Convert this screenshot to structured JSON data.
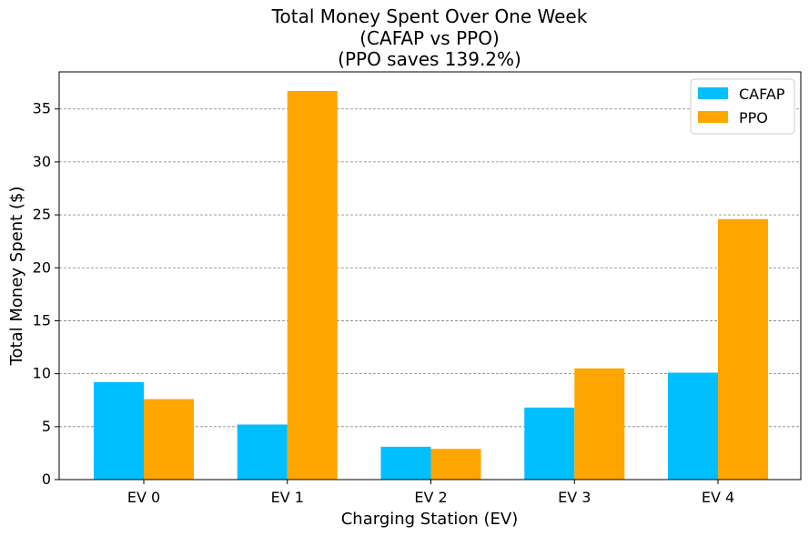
{
  "chart_data": {
    "type": "bar",
    "title": [
      "Total Money Spent Over One Week",
      "(CAFAP vs PPO)",
      "(PPO saves 139.2%)"
    ],
    "xlabel": "Charging Station (EV)",
    "ylabel": "Total Money Spent ($)",
    "categories": [
      "EV 0",
      "EV 1",
      "EV 2",
      "EV 3",
      "EV 4"
    ],
    "series": [
      {
        "name": "CAFAP",
        "color": "#00BFFF",
        "values": [
          9.2,
          5.2,
          3.1,
          6.8,
          10.1
        ]
      },
      {
        "name": "PPO",
        "color": "#FFA500",
        "values": [
          7.6,
          36.7,
          2.9,
          10.5,
          24.6
        ]
      }
    ],
    "ylim": [
      0,
      38.5
    ],
    "yticks": [
      "0",
      "5",
      "10",
      "15",
      "20",
      "25",
      "30",
      "35"
    ],
    "grid": "y-dashed",
    "legend": "top-right"
  }
}
